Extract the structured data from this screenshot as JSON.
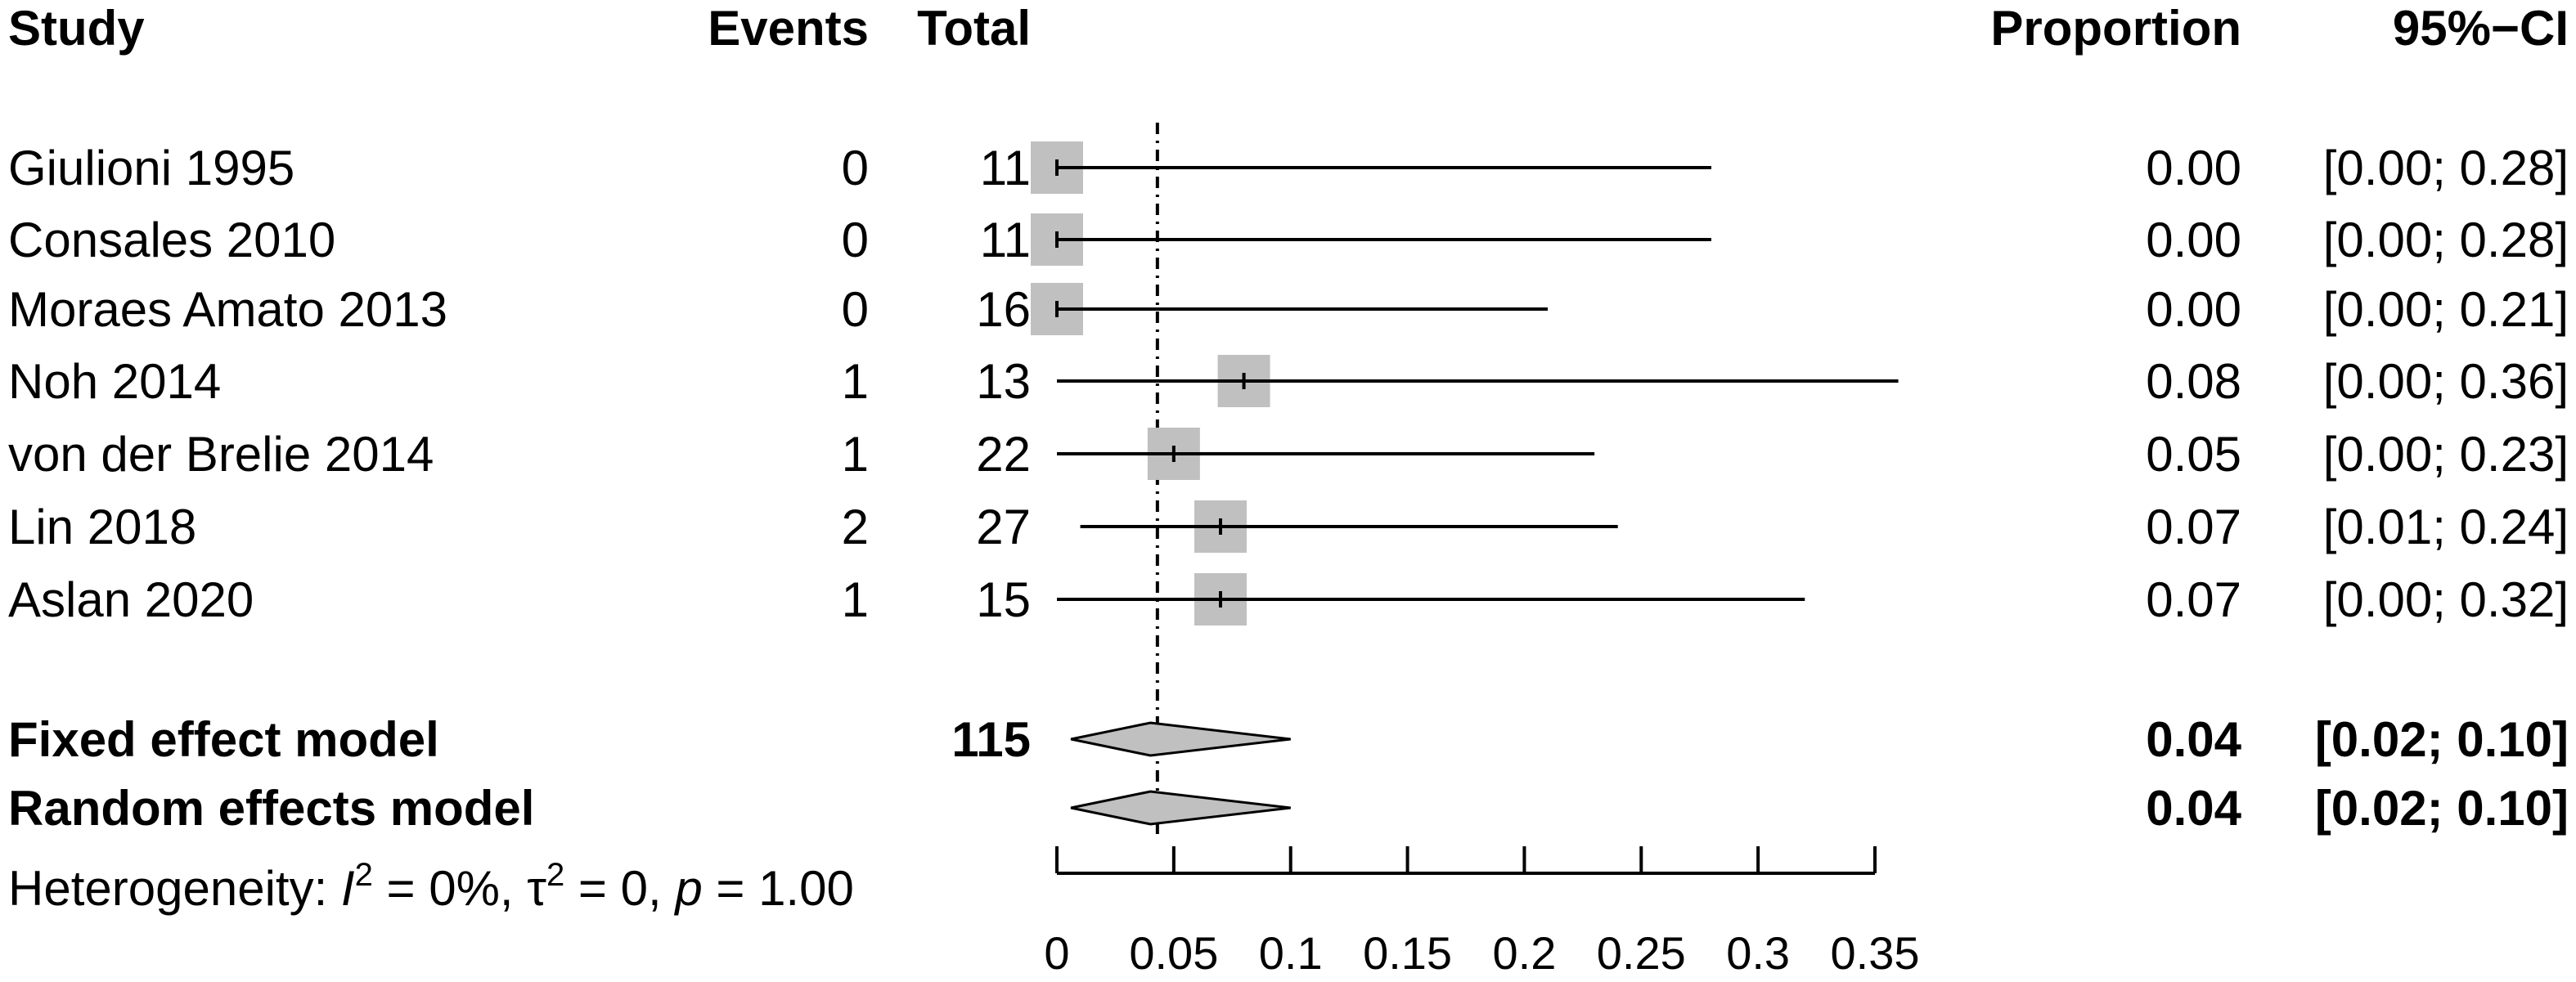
{
  "chart_data": {
    "type": "forest",
    "headers": {
      "study": "Study",
      "events": "Events",
      "total": "Total",
      "proportion": "Proportion",
      "ci": "95%−CI"
    },
    "studies": [
      {
        "name": "Giulioni 1995",
        "events": "0",
        "total": "11",
        "proportion": 0.0,
        "lower": 0.0,
        "upper": 0.28,
        "prop_text": "0.00",
        "ci_text": "[0.00; 0.28]"
      },
      {
        "name": "Consales 2010",
        "events": "0",
        "total": "11",
        "proportion": 0.0,
        "lower": 0.0,
        "upper": 0.28,
        "prop_text": "0.00",
        "ci_text": "[0.00; 0.28]"
      },
      {
        "name": "Moraes Amato 2013",
        "events": "0",
        "total": "16",
        "proportion": 0.0,
        "lower": 0.0,
        "upper": 0.21,
        "prop_text": "0.00",
        "ci_text": "[0.00; 0.21]"
      },
      {
        "name": "Noh 2014",
        "events": "1",
        "total": "13",
        "proportion": 0.08,
        "lower": 0.0,
        "upper": 0.36,
        "prop_text": "0.08",
        "ci_text": "[0.00; 0.36]"
      },
      {
        "name": "von der Brelie 2014",
        "events": "1",
        "total": "22",
        "proportion": 0.05,
        "lower": 0.0,
        "upper": 0.23,
        "prop_text": "0.05",
        "ci_text": "[0.00; 0.23]"
      },
      {
        "name": "Lin 2018",
        "events": "2",
        "total": "27",
        "proportion": 0.07,
        "lower": 0.01,
        "upper": 0.24,
        "prop_text": "0.07",
        "ci_text": "[0.01; 0.24]"
      },
      {
        "name": "Aslan 2020",
        "events": "1",
        "total": "15",
        "proportion": 0.07,
        "lower": 0.0,
        "upper": 0.32,
        "prop_text": "0.07",
        "ci_text": "[0.00; 0.32]"
      }
    ],
    "models": [
      {
        "name": "Fixed effect model",
        "total": "115",
        "estimate": 0.04,
        "lower": 0.02,
        "upper": 0.1,
        "prop_text": "0.04",
        "ci_text": "[0.02; 0.10]"
      },
      {
        "name": "Random effects model",
        "total": "",
        "estimate": 0.04,
        "lower": 0.02,
        "upper": 0.1,
        "prop_text": "0.04",
        "ci_text": "[0.02; 0.10]"
      }
    ],
    "heterogeneity": {
      "prefix": "Heterogeneity: ",
      "i2_symbol": "I",
      "i2_value": " = 0%, ",
      "tau_symbol": "τ",
      "tau_value": " = 0, ",
      "p_symbol": "p",
      "p_value": " = 1.00",
      "superscript": "2"
    },
    "x_ticks": [
      0,
      0.05,
      0.1,
      0.15,
      0.2,
      0.25,
      0.3,
      0.35
    ],
    "x_tick_labels": [
      "0",
      "0.05",
      "0.1",
      "0.15",
      "0.2",
      "0.25",
      "0.3",
      "0.35"
    ],
    "xlim": [
      0,
      0.35
    ],
    "reference_line": 0.043,
    "colors": {
      "box": "#c0c0c0",
      "diamond": "#c0c0c0",
      "line": "#000000"
    }
  }
}
